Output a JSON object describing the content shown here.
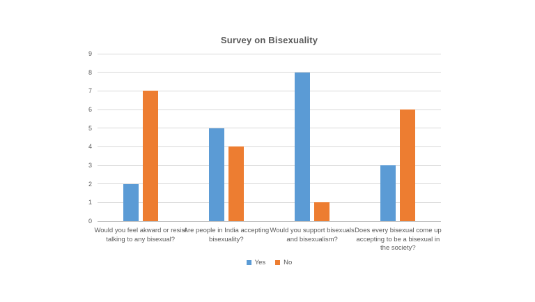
{
  "chart_data": {
    "type": "bar",
    "title": "Survey on Bisexuality",
    "categories": [
      "Would you feel akward or resist talking to any bisexual?",
      "Are people in India accepting bisexuality?",
      "Would you support bisexuals and bisexualism?",
      "Does every bisexual come up accepting to be a bisexual in the society?"
    ],
    "series": [
      {
        "name": "Yes",
        "color": "#5B9BD5",
        "values": [
          2,
          5,
          8,
          3
        ]
      },
      {
        "name": "No",
        "color": "#ED7D31",
        "values": [
          7,
          4,
          1,
          6
        ]
      }
    ],
    "xlabel": "",
    "ylabel": "",
    "ylim": [
      0,
      9
    ],
    "yticks": [
      0,
      1,
      2,
      3,
      4,
      5,
      6,
      7,
      8,
      9
    ],
    "grid": "horizontal",
    "legend_position": "bottom"
  },
  "colors": {
    "text": "#595959",
    "gridline": "#D9D9D9",
    "axis_line": "#BFBFBF",
    "background": "#FFFFFF"
  }
}
